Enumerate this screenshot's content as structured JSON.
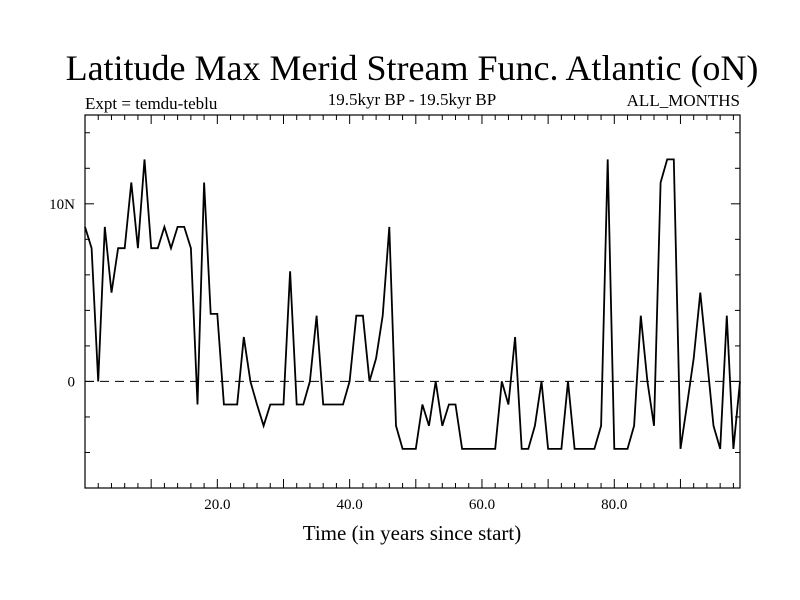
{
  "chart_data": {
    "type": "line",
    "title": "Latitude Max Merid Stream Func. Atlantic (oN)",
    "expt_label": "Expt = temdu-teblu",
    "period_label": "19.5kyr BP - 19.5kyr BP",
    "months_label": "ALL_MONTHS",
    "xlabel": "Time (in years since start)",
    "ylabel": "",
    "xlim": [
      0,
      99
    ],
    "ylim": [
      -6,
      15
    ],
    "x_ticks": [
      {
        "value": 20,
        "label": "20.0"
      },
      {
        "value": 40,
        "label": "40.0"
      },
      {
        "value": 60,
        "label": "60.0"
      },
      {
        "value": 80,
        "label": "80.0"
      }
    ],
    "y_ticks": [
      {
        "value": 0,
        "label": "0"
      },
      {
        "value": 10,
        "label": "10N"
      }
    ],
    "zero_line": true,
    "series": [
      {
        "name": "Latitude Max Merid Stream Func. Atlantic",
        "x_start": 0,
        "x_step": 1,
        "values": [
          8.7,
          7.5,
          0.0,
          8.7,
          5.0,
          7.5,
          7.5,
          11.2,
          7.5,
          12.5,
          7.5,
          7.5,
          8.7,
          7.5,
          8.7,
          8.7,
          7.5,
          -1.3,
          11.2,
          3.8,
          3.8,
          -1.3,
          -1.3,
          -1.3,
          2.5,
          0.0,
          -1.3,
          -2.5,
          -1.3,
          -1.3,
          -1.3,
          6.2,
          -1.3,
          -1.3,
          0.0,
          3.7,
          -1.3,
          -1.3,
          -1.3,
          -1.3,
          0.0,
          3.7,
          3.7,
          0.0,
          1.3,
          3.7,
          8.7,
          -2.5,
          -3.8,
          -3.8,
          -3.8,
          -1.3,
          -2.5,
          0.0,
          -2.5,
          -1.3,
          -1.3,
          -3.8,
          -3.8,
          -3.8,
          -3.8,
          -3.8,
          -3.8,
          0.0,
          -1.3,
          2.5,
          -3.8,
          -3.8,
          -2.5,
          0.0,
          -3.8,
          -3.8,
          -3.8,
          0.0,
          -3.8,
          -3.8,
          -3.8,
          -3.8,
          -2.5,
          12.5,
          -3.8,
          -3.8,
          -3.8,
          -2.5,
          3.7,
          0.0,
          -2.5,
          11.2,
          12.5,
          12.5,
          -3.8,
          -1.3,
          1.3,
          5.0,
          1.3,
          -2.5,
          -3.8,
          3.7,
          -3.8,
          0.0
        ]
      }
    ]
  }
}
